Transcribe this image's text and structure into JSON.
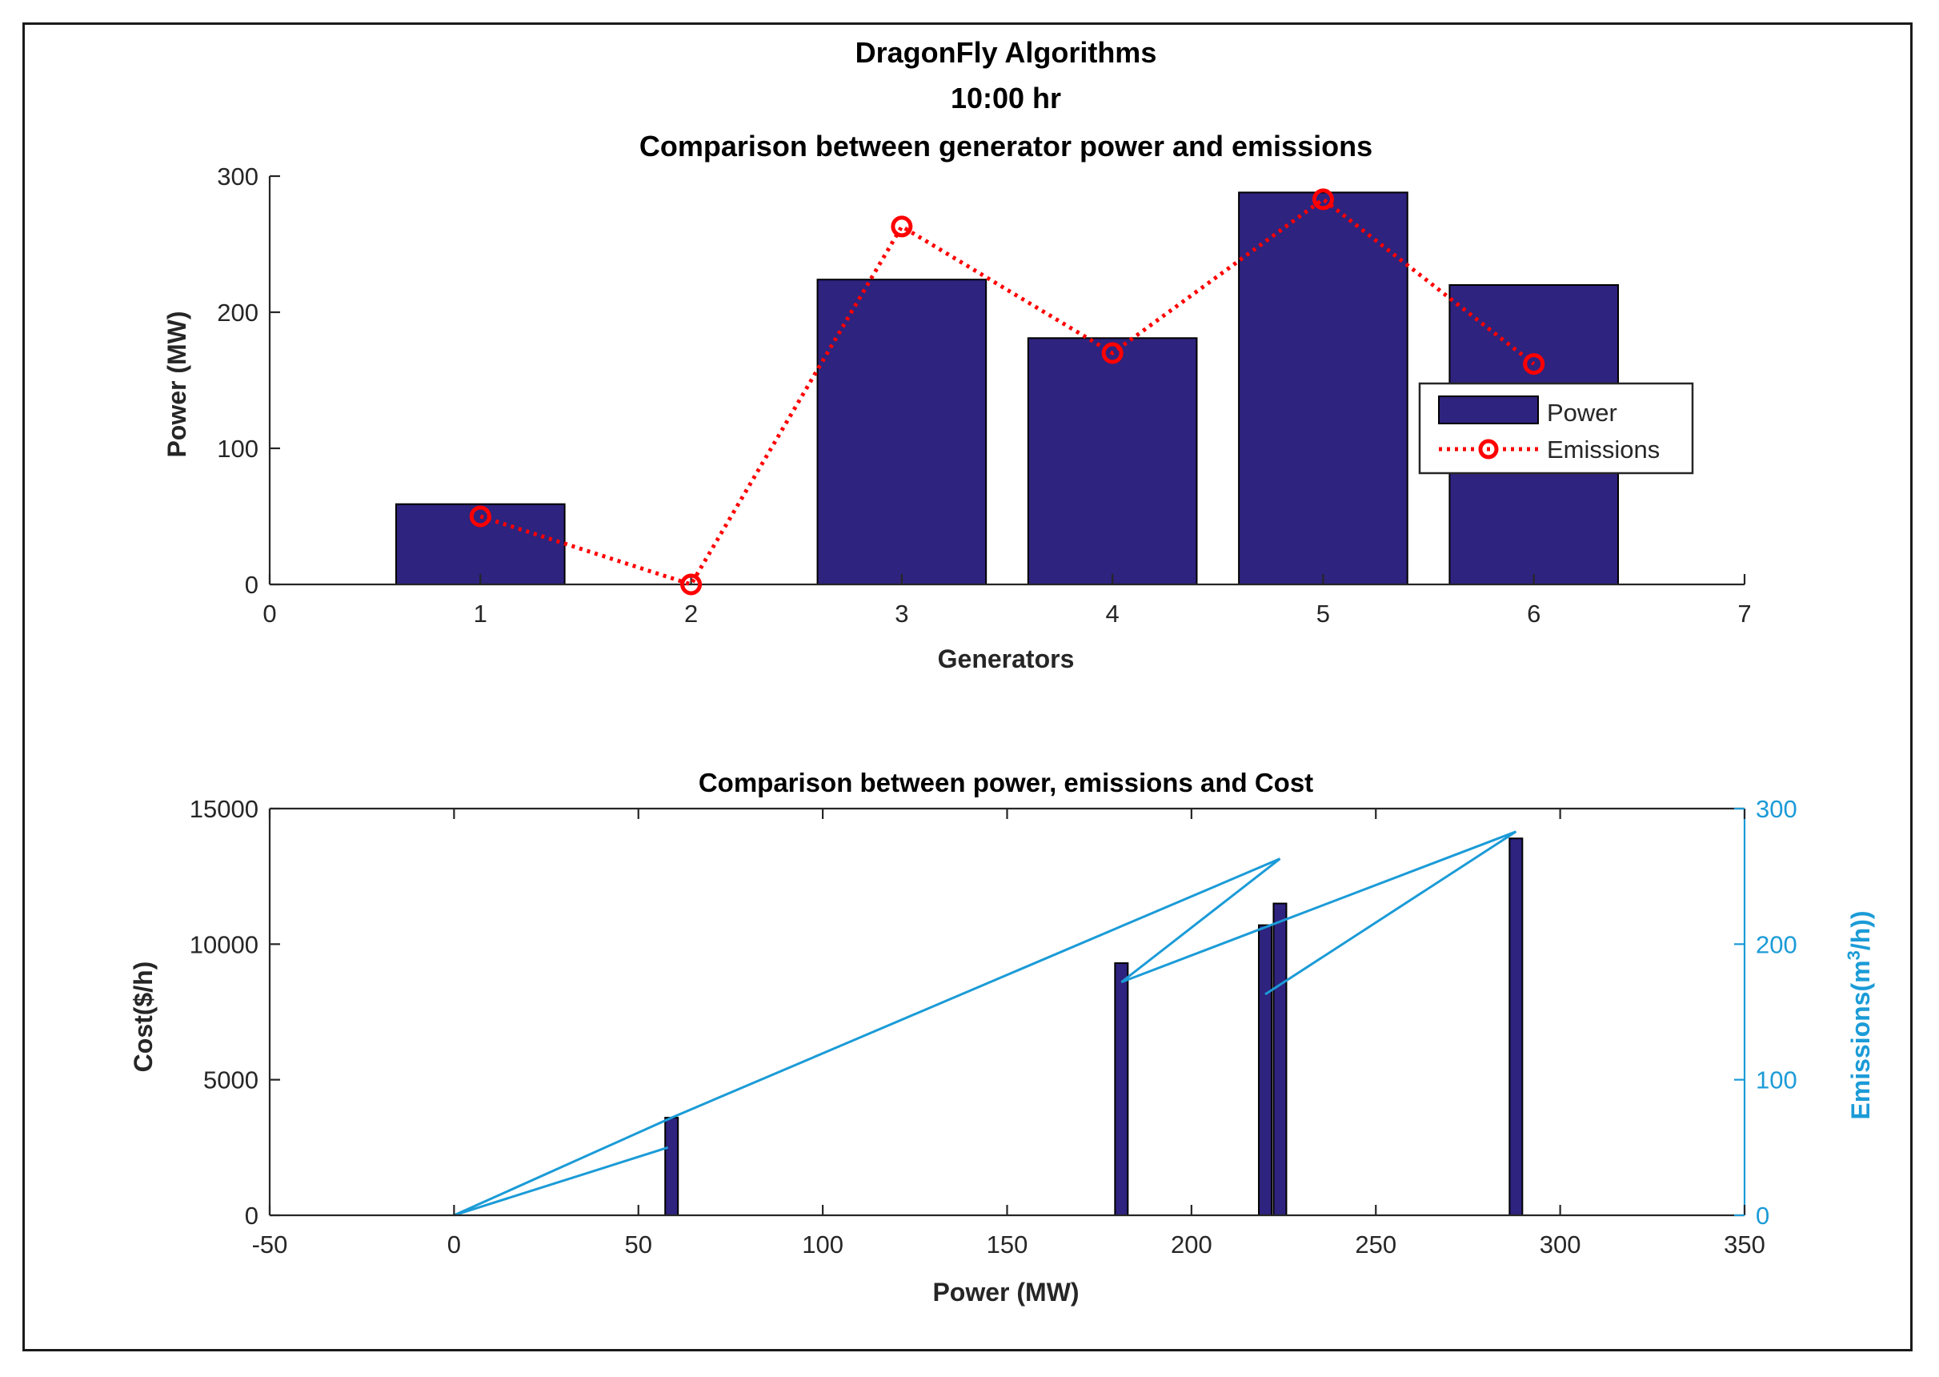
{
  "figure": {
    "title_line1": "DragonFly Algorithms",
    "title_line2": "10:00 hr"
  },
  "colors": {
    "bar": "#2e237e",
    "emissions_top": "#ff0000",
    "emissions_bottom": "#1b9bd7",
    "axis": "#262626"
  },
  "chart_data": [
    {
      "type": "bar",
      "title": "Comparison between generator power and emissions",
      "xlabel": "Generators",
      "ylabel": "Power (MW)",
      "xlim": [
        0,
        7
      ],
      "ylim": [
        0,
        300
      ],
      "x_ticks": [
        "0",
        "1",
        "2",
        "3",
        "4",
        "5",
        "6",
        "7"
      ],
      "y_ticks": [
        "0",
        "100",
        "200",
        "300"
      ],
      "categories": [
        1,
        2,
        3,
        4,
        5,
        6
      ],
      "series": [
        {
          "name": "Power",
          "kind": "bar",
          "values": [
            59,
            0,
            224,
            181,
            288,
            220
          ]
        },
        {
          "name": "Emissions",
          "kind": "line-dotted-circle-markers",
          "values": [
            50,
            0,
            263,
            170,
            283,
            162
          ]
        }
      ],
      "legend_position": "right",
      "grid": false
    },
    {
      "type": "bar",
      "title": "Comparison between power, emissions and Cost",
      "xlabel": "Power (MW)",
      "ylabel": "Cost($/h)",
      "ylabel_right_prefix": "Emissions(m",
      "ylabel_right_sup": "3",
      "ylabel_right_suffix": "/h))",
      "xlim": [
        -50,
        350
      ],
      "ylim": [
        0,
        15000
      ],
      "ylim_right": [
        0,
        300
      ],
      "x_ticks": [
        "-50",
        "0",
        "50",
        "100",
        "150",
        "200",
        "250",
        "300",
        "350"
      ],
      "y_ticks": [
        "0",
        "5000",
        "10000",
        "15000"
      ],
      "y_ticks_right": [
        "0",
        "100",
        "200",
        "300"
      ],
      "bars": {
        "x": [
          59,
          181,
          220,
          224,
          288
        ],
        "values": [
          3600,
          9300,
          10700,
          11500,
          13900
        ]
      },
      "emissions_line": {
        "x": [
          0,
          58,
          0,
          59,
          224,
          181,
          288,
          220
        ],
        "y": [
          0,
          50,
          0,
          72,
          263,
          172,
          283,
          163
        ]
      },
      "grid": false
    }
  ]
}
